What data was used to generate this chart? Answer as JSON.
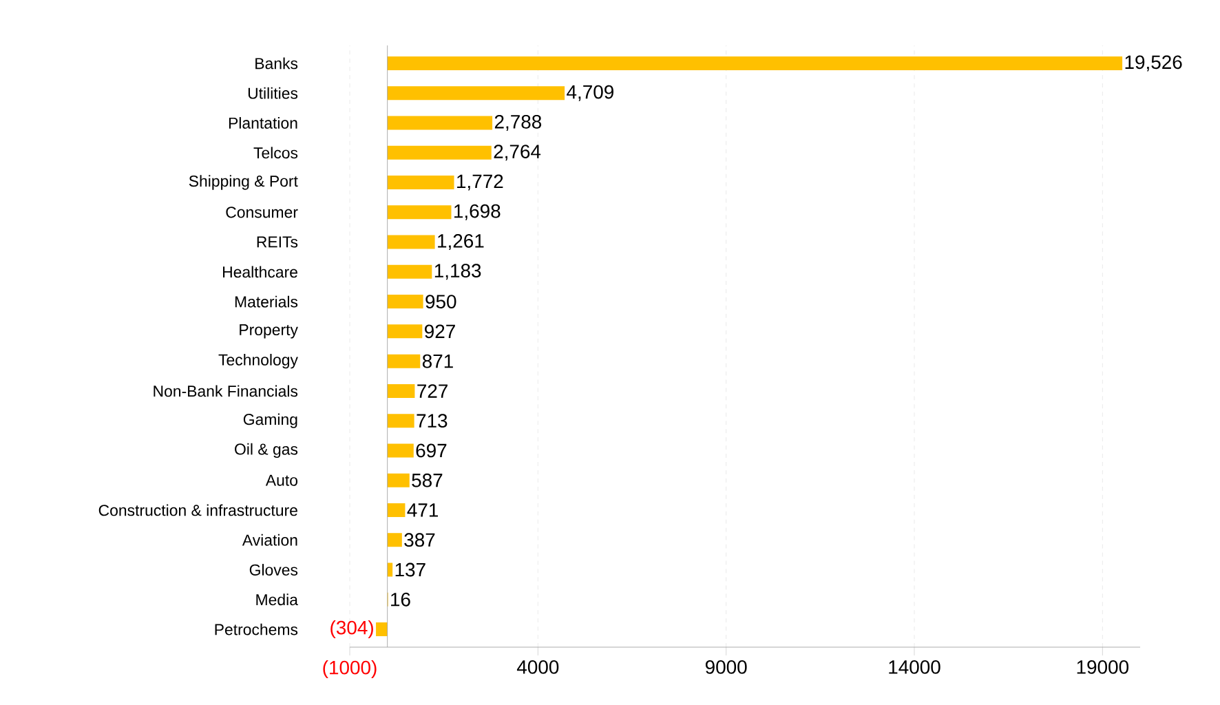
{
  "chart_data": {
    "type": "bar",
    "orientation": "horizontal",
    "categories": [
      "Banks",
      "Utilities",
      "Plantation",
      "Telcos",
      "Shipping & Port",
      "Consumer",
      "REITs",
      "Healthcare",
      "Materials",
      "Property",
      "Technology",
      "Non-Bank Financials",
      "Gaming",
      "Oil & gas",
      "Auto",
      "Construction & infrastructure",
      "Aviation",
      "Gloves",
      "Media",
      "Petrochems"
    ],
    "values": [
      19526,
      4709,
      2788,
      2764,
      1772,
      1698,
      1261,
      1183,
      950,
      927,
      871,
      727,
      713,
      697,
      587,
      471,
      387,
      137,
      16,
      -304
    ],
    "value_labels": [
      "19,526",
      "4,709",
      "2,788",
      "2,764",
      "1,772",
      "1,698",
      "1,261",
      "1,183",
      "950",
      "927",
      "871",
      "727",
      "713",
      "697",
      "587",
      "471",
      "387",
      "137",
      "16",
      "(304)"
    ],
    "color": "#ffc000",
    "xlim": [
      -1000,
      20000
    ],
    "xticks": [
      {
        "value": -1000,
        "label": "(1000)"
      },
      4000,
      9000,
      14000,
      19000
    ],
    "grid": "x"
  }
}
